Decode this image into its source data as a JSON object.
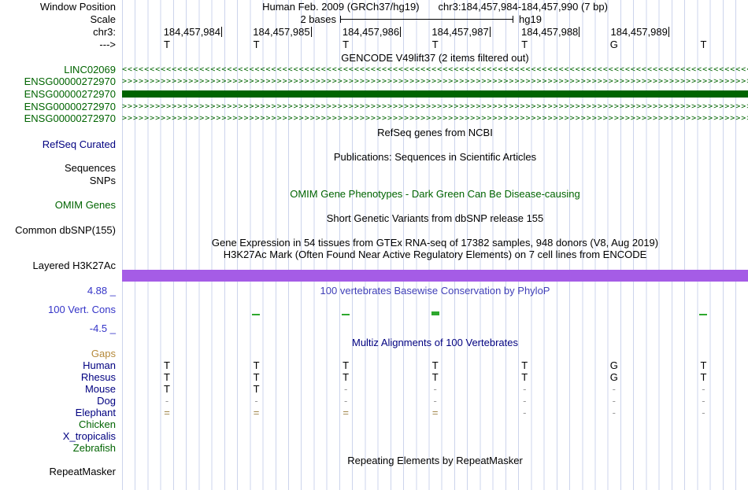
{
  "colors": {
    "navy": "#000080",
    "green": "#006400",
    "blue": "#3535c8",
    "title_blue": "#4040b8",
    "orange": "#b5893a",
    "purple": "#a55ce6",
    "grid": "#ccd4ec",
    "gray": "#999999",
    "tan": "#a08548",
    "cons": "#2ea82e"
  },
  "header": {
    "window_position_label": "Window Position",
    "assembly_title": "Human Feb. 2009 (GRCh37/hg19)",
    "position": "chr3:184,457,984-184,457,990 (7 bp)",
    "scale_label": "Scale",
    "scale_value": "2 bases",
    "scale_assembly": "hg19",
    "chrom_label": "chr3:",
    "strand_label": "--->",
    "coordinates": [
      "184,457,984",
      "184,457,985",
      "184,457,986",
      "184,457,987",
      "184,457,988",
      "184,457,989"
    ],
    "bases": [
      "T",
      "T",
      "T",
      "T",
      "T",
      "G",
      "T"
    ]
  },
  "gencode": {
    "title": "GENCODE V49lift37 (2 items filtered out)",
    "genes": [
      {
        "label": "LINC02069",
        "display": "arrows-left"
      },
      {
        "label": "ENSG00000272970",
        "display": "arrows-right"
      },
      {
        "label": "ENSG00000272970",
        "display": "solid"
      },
      {
        "label": "ENSG00000272970",
        "display": "arrows-right"
      },
      {
        "label": "ENSG00000272970",
        "display": "arrows-right"
      }
    ]
  },
  "sections": {
    "refseq_title": "RefSeq genes from NCBI",
    "refseq_label": "RefSeq Curated",
    "publications_title": "Publications: Sequences in Scientific Articles",
    "sequences_label": "Sequences",
    "snps_label": "SNPs",
    "omim_title": "OMIM Gene Phenotypes - Dark Green Can Be Disease-causing",
    "omim_label": "OMIM Genes",
    "dbsnp_title": "Short Genetic Variants from dbSNP release 155",
    "dbsnp_label": "Common dbSNP(155)",
    "gtex_title": "Gene Expression in 54 tissues from GTEx RNA-seq of 17382 samples, 948 donors (V8, Aug 2019)",
    "h3k27ac_title": "H3K27Ac Mark (Often Found Near Active Regulatory Elements) on 7 cell lines from ENCODE",
    "h3k27ac_label": "Layered H3K27Ac"
  },
  "conservation": {
    "max_value": "4.88 _",
    "title": "100 vertebrates Basewise Conservation by PhyloP",
    "track_label": "100 Vert. Cons",
    "min_value": "-4.5 _",
    "ticks": [
      {
        "base": 1,
        "size": "small"
      },
      {
        "base": 2,
        "size": "small"
      },
      {
        "base": 3,
        "size": "large"
      },
      {
        "base": 6,
        "size": "small"
      }
    ]
  },
  "multiz": {
    "title": "Multiz Alignments of 100 Vertebrates",
    "gaps_label": "Gaps",
    "species": [
      {
        "name": "Human",
        "color": "navy",
        "cells": [
          "T",
          "T",
          "T",
          "T",
          "T",
          "G",
          "T"
        ]
      },
      {
        "name": "Rhesus",
        "color": "navy",
        "cells": [
          "T",
          "T",
          "T",
          "T",
          "T",
          "G",
          "T"
        ]
      },
      {
        "name": "Mouse",
        "color": "navy",
        "cells": [
          "T",
          "T",
          "-",
          "-",
          "-",
          "-",
          "-"
        ]
      },
      {
        "name": "Dog",
        "color": "navy",
        "cells": [
          "-",
          "-",
          "-",
          "-",
          "-",
          "-",
          "-"
        ]
      },
      {
        "name": "Elephant",
        "color": "navy",
        "cells": [
          "=",
          "=",
          "=",
          "=",
          "-",
          "-",
          "-"
        ]
      },
      {
        "name": "Chicken",
        "color": "green",
        "cells": [
          "",
          "",
          "",
          "",
          "",
          "",
          ""
        ]
      },
      {
        "name": "X_tropicalis",
        "color": "navy",
        "cells": [
          "",
          "",
          "",
          "",
          "",
          "",
          ""
        ]
      },
      {
        "name": "Zebrafish",
        "color": "green",
        "cells": [
          "",
          "",
          "",
          "",
          "",
          "",
          ""
        ]
      }
    ]
  },
  "repeatmasker": {
    "title": "Repeating Elements by RepeatMasker",
    "label": "RepeatMasker"
  }
}
